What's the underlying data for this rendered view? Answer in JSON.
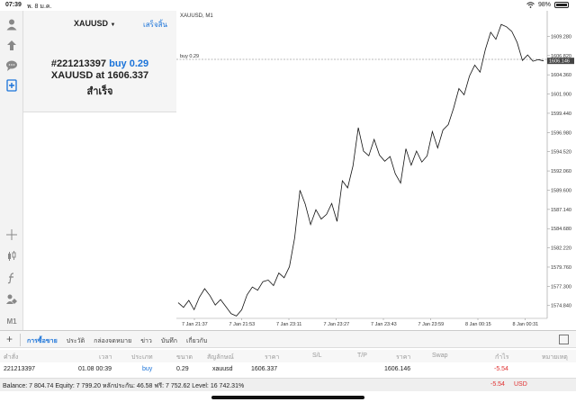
{
  "status": {
    "time": "07:39",
    "date": "พ. 8 ม.ค.",
    "wifi": "wifi-icon",
    "battery_percent": "98%"
  },
  "order": {
    "symbol": "XAUUSD",
    "symbol_caret": "▼",
    "done_label": "เสร็จสิ้น",
    "ticket": "#221213397",
    "side": "buy",
    "volume": "0.29",
    "line2_prefix": "XAUUSD at",
    "price": "1606.337",
    "result": "สำเร็จ"
  },
  "chart": {
    "title": "XAUUSD, M1",
    "order_label": "buy 0.29",
    "current_price_label": "1606.146",
    "accent": "#1a73d9"
  },
  "chart_data": {
    "type": "line",
    "title": "XAUUSD, M1",
    "xlabel": "",
    "ylabel": "",
    "x_tick_labels": [
      "7 Jan 21:37",
      "7 Jan 21:53",
      "7 Jan 23:11",
      "7 Jan 23:27",
      "7 Jan 23:43",
      "7 Jan 23:59",
      "8 Jan 00:15",
      "8 Jan 00:31"
    ],
    "y_tick_labels": [
      "1609.280",
      "1606.820",
      "1604.360",
      "1601.900",
      "1599.440",
      "1596.980",
      "1594.520",
      "1592.060",
      "1589.600",
      "1587.140",
      "1584.680",
      "1582.220",
      "1579.760",
      "1577.300",
      "1574.840"
    ],
    "ylim": [
      1573.2,
      1611.4
    ],
    "order_level": 1606.337,
    "current_price": 1606.146,
    "grid": false,
    "series": [
      {
        "values": [
          1575.2,
          1574.6,
          1575.5,
          1574.3,
          1575.9,
          1577.0,
          1576.1,
          1574.9,
          1575.6,
          1574.7,
          1573.8,
          1573.5,
          1574.3,
          1576.2,
          1577.2,
          1576.8,
          1577.9,
          1578.1,
          1577.4,
          1579.0,
          1578.4,
          1579.8,
          1583.5,
          1589.6,
          1587.8,
          1585.2,
          1587.1,
          1585.9,
          1586.5,
          1587.9,
          1585.6,
          1590.8,
          1589.9,
          1592.7,
          1597.6,
          1594.6,
          1594.0,
          1596.1,
          1594.1,
          1593.3,
          1593.9,
          1591.7,
          1590.5,
          1594.9,
          1592.8,
          1594.6,
          1593.2,
          1594.0,
          1597.1,
          1595.0,
          1597.3,
          1598.0,
          1600.1,
          1602.6,
          1601.8,
          1604.2,
          1605.6,
          1604.7,
          1607.6,
          1609.8,
          1608.9,
          1610.8,
          1610.5,
          1609.9,
          1608.5,
          1606.2,
          1606.9,
          1606.1,
          1606.3,
          1606.146
        ]
      }
    ]
  },
  "bottom": {
    "tabs": [
      "การซื้อขาย",
      "ประวัติ",
      "กล่องจดหมาย",
      "ข่าว",
      "บันทึก",
      "เกี่ยวกับ"
    ],
    "active_tab": 0,
    "headers": [
      "คำสั่ง",
      "เวลา",
      "ประเภท",
      "ขนาด",
      "สัญลักษณ์",
      "ราคา",
      "S/L",
      "T/P",
      "ราคา",
      "Swap",
      "กำไร",
      "หมายเหตุ"
    ],
    "row": {
      "order": "221213397",
      "time": "01.08 00:39",
      "type": "buy",
      "size": "0.29",
      "symbol": "xauusd",
      "open_price": "1606.337",
      "current_price": "1606.146",
      "profit": "-5.54"
    },
    "balance_text": "Balance: 7 804.74 Equity: 7 799.20 หลักประกัน: 46.58 ฟรี: 7 752.62 Level: 16 742.31%",
    "balance_profit": "-5.54",
    "currency": "USD",
    "loss_color": "#e03030"
  }
}
